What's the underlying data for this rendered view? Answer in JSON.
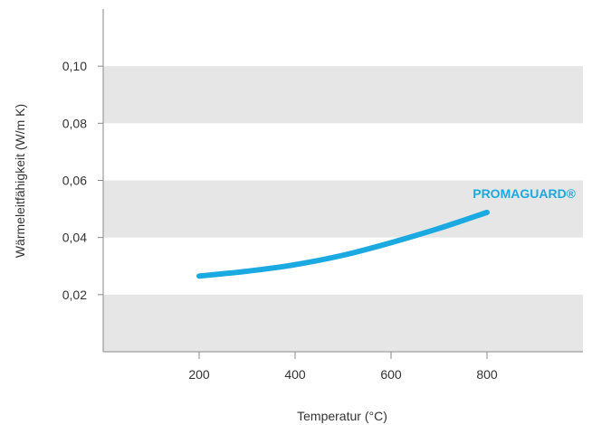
{
  "chart_data": {
    "type": "line",
    "title": "",
    "xlabel": "Temperatur (°C)",
    "ylabel": "Wärmeleitfähigkeit (W/m K)",
    "xlim": [
      0,
      1000
    ],
    "ylim": [
      0,
      0.12
    ],
    "x_ticks": [
      200,
      400,
      600,
      800
    ],
    "x_tick_labels": [
      "200",
      "400",
      "600",
      "800"
    ],
    "y_ticks": [
      0.02,
      0.04,
      0.06,
      0.08,
      0.1
    ],
    "y_tick_labels": [
      "0,02",
      "0,04",
      "0,06",
      "0,08",
      "0,10"
    ],
    "horizontal_bands": true,
    "band_color": "#e6e6e6",
    "series": [
      {
        "name": "PROMAGUARD®",
        "color": "#1ba9e1",
        "x": [
          200,
          300,
          400,
          500,
          600,
          700,
          800
        ],
        "y": [
          0.0265,
          0.0282,
          0.0305,
          0.0338,
          0.0382,
          0.0432,
          0.0488
        ]
      }
    ]
  }
}
